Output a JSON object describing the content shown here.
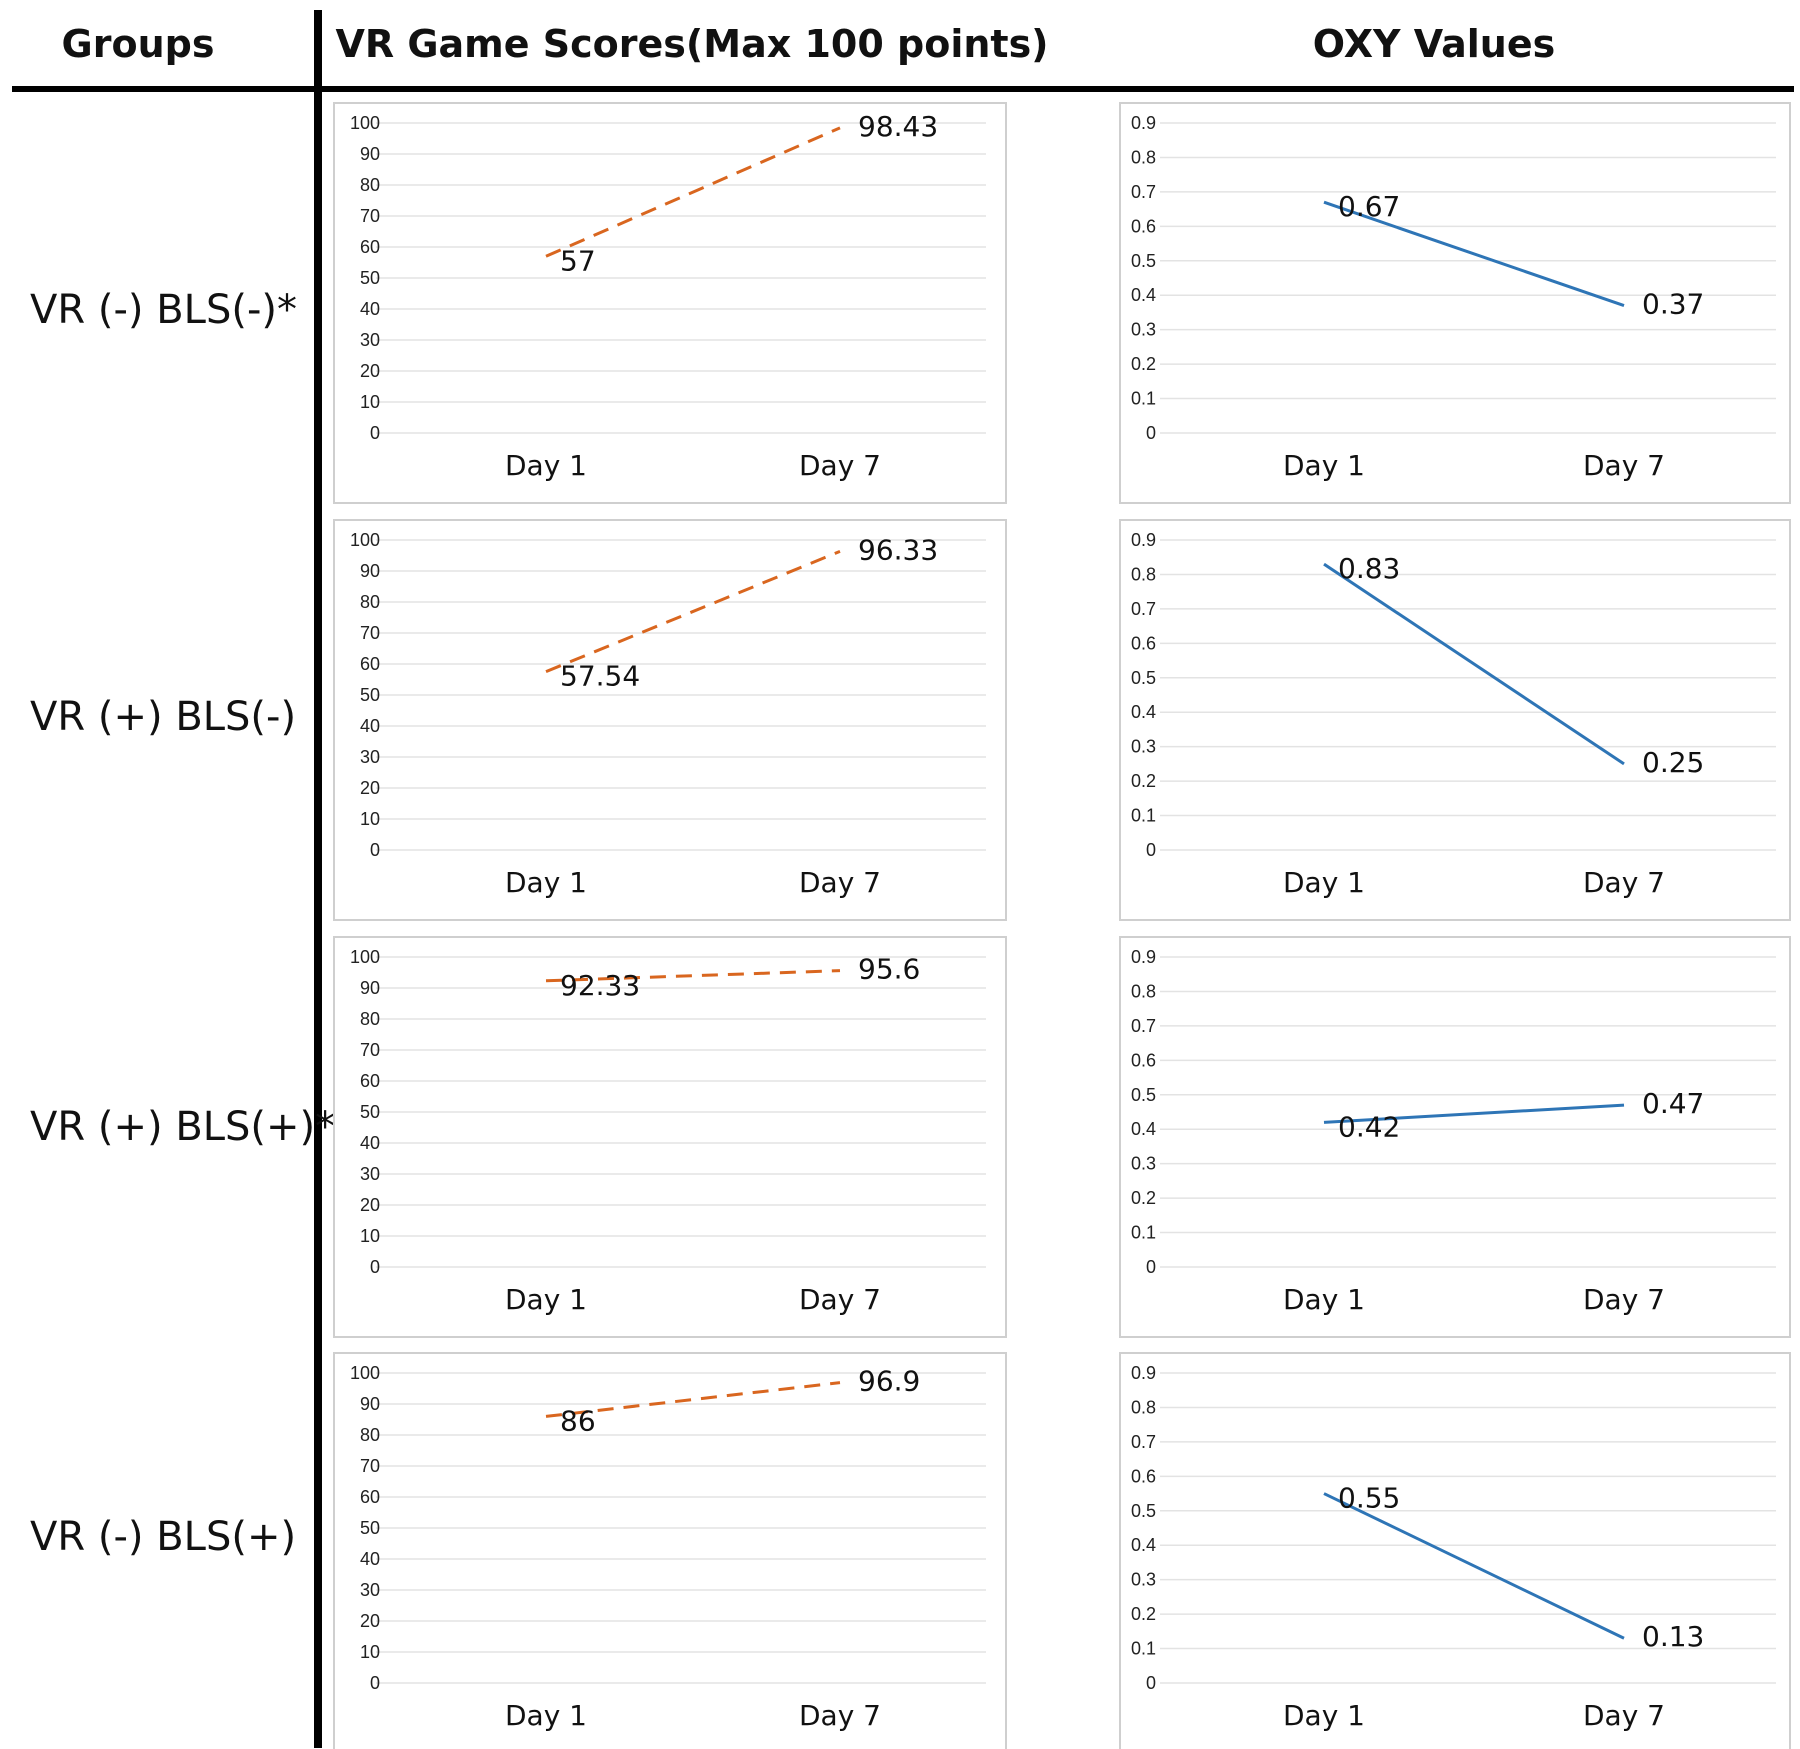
{
  "headers": {
    "groups": "Groups",
    "scores": "VR Game Scores(Max 100 points)",
    "oxy": "OXY Values"
  },
  "groups": [
    "VR (-) BLS(-)*",
    "VR (+) BLS(-)",
    "VR (+) BLS(+)*",
    "VR (-) BLS(+)"
  ],
  "colors": {
    "score_line": "#d9661f",
    "oxy_line": "#2e75b6",
    "grid": "#e3e3e3",
    "frame": "#cfcfcf",
    "rule": "#000000"
  },
  "chart_data": [
    {
      "type": "line",
      "group": "VR (-) BLS(-)*",
      "metric": "VR Game Scores",
      "categories": [
        "Day 1",
        "Day 7"
      ],
      "values": [
        57,
        98.43
      ],
      "labels": [
        "57",
        "98.43"
      ],
      "yticks": [
        "0",
        "10",
        "20",
        "30",
        "40",
        "50",
        "60",
        "70",
        "80",
        "90",
        "100"
      ],
      "ylim": [
        0,
        100
      ],
      "line_style": "dashed"
    },
    {
      "type": "line",
      "group": "VR (-) BLS(-)*",
      "metric": "OXY Values",
      "categories": [
        "Day 1",
        "Day 7"
      ],
      "values": [
        0.67,
        0.37
      ],
      "labels": [
        "0.67",
        "0.37"
      ],
      "yticks": [
        "0",
        "0.1",
        "0.2",
        "0.3",
        "0.4",
        "0.5",
        "0.6",
        "0.7",
        "0.8",
        "0.9"
      ],
      "ylim": [
        0,
        0.9
      ],
      "line_style": "solid"
    },
    {
      "type": "line",
      "group": "VR (+) BLS(-)",
      "metric": "VR Game Scores",
      "categories": [
        "Day 1",
        "Day 7"
      ],
      "values": [
        57.54,
        96.33
      ],
      "labels": [
        "57.54",
        "96.33"
      ],
      "yticks": [
        "0",
        "10",
        "20",
        "30",
        "40",
        "50",
        "60",
        "70",
        "80",
        "90",
        "100"
      ],
      "ylim": [
        0,
        100
      ],
      "line_style": "dashed"
    },
    {
      "type": "line",
      "group": "VR (+) BLS(-)",
      "metric": "OXY Values",
      "categories": [
        "Day 1",
        "Day 7"
      ],
      "values": [
        0.83,
        0.25
      ],
      "labels": [
        "0.83",
        "0.25"
      ],
      "yticks": [
        "0",
        "0.1",
        "0.2",
        "0.3",
        "0.4",
        "0.5",
        "0.6",
        "0.7",
        "0.8",
        "0.9"
      ],
      "ylim": [
        0,
        0.9
      ],
      "line_style": "solid"
    },
    {
      "type": "line",
      "group": "VR (+) BLS(+)*",
      "metric": "VR Game Scores",
      "categories": [
        "Day 1",
        "Day 7"
      ],
      "values": [
        92.33,
        95.6
      ],
      "labels": [
        "92.33",
        "95.6"
      ],
      "yticks": [
        "0",
        "10",
        "20",
        "30",
        "40",
        "50",
        "60",
        "70",
        "80",
        "90",
        "100"
      ],
      "ylim": [
        0,
        100
      ],
      "line_style": "dashed"
    },
    {
      "type": "line",
      "group": "VR (+) BLS(+)*",
      "metric": "OXY Values",
      "categories": [
        "Day 1",
        "Day 7"
      ],
      "values": [
        0.42,
        0.47
      ],
      "labels": [
        "0.42",
        "0.47"
      ],
      "yticks": [
        "0",
        "0.1",
        "0.2",
        "0.3",
        "0.4",
        "0.5",
        "0.6",
        "0.7",
        "0.8",
        "0.9"
      ],
      "ylim": [
        0,
        0.9
      ],
      "line_style": "solid"
    },
    {
      "type": "line",
      "group": "VR (-) BLS(+)",
      "metric": "VR Game Scores",
      "categories": [
        "Day 1",
        "Day 7"
      ],
      "values": [
        86,
        96.9
      ],
      "labels": [
        "86",
        "96.9"
      ],
      "yticks": [
        "0",
        "10",
        "20",
        "30",
        "40",
        "50",
        "60",
        "70",
        "80",
        "90",
        "100"
      ],
      "ylim": [
        0,
        100
      ],
      "line_style": "dashed"
    },
    {
      "type": "line",
      "group": "VR (-) BLS(+)",
      "metric": "OXY Values",
      "categories": [
        "Day 1",
        "Day 7"
      ],
      "values": [
        0.55,
        0.13
      ],
      "labels": [
        "0.55",
        "0.13"
      ],
      "yticks": [
        "0",
        "0.1",
        "0.2",
        "0.3",
        "0.4",
        "0.5",
        "0.6",
        "0.7",
        "0.8",
        "0.9"
      ],
      "ylim": [
        0,
        0.9
      ],
      "line_style": "solid"
    }
  ]
}
